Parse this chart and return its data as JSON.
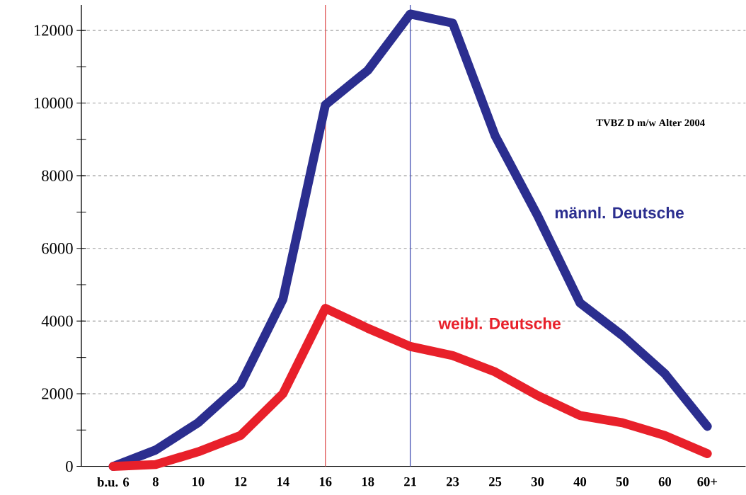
{
  "chart_data": {
    "type": "line",
    "categories": [
      "b.u. 6",
      "8",
      "10",
      "12",
      "14",
      "16",
      "18",
      "21",
      "23",
      "25",
      "30",
      "40",
      "50",
      "60",
      "60+"
    ],
    "ylim": [
      0,
      12700
    ],
    "yticks": [
      0,
      {
        "value": 1000,
        "label": null
      },
      2000,
      {
        "value": 3000,
        "label": null
      },
      4000,
      {
        "value": 5000,
        "label": null
      },
      6000,
      {
        "value": 7000,
        "label": null
      },
      8000,
      {
        "value": 9000,
        "label": null
      },
      10000,
      {
        "value": 11000,
        "label": null
      },
      12000
    ],
    "grid": "y",
    "marker": "none",
    "line_style": "solid",
    "series": [
      {
        "name": "männl. Deutsche",
        "color": "#2b2e8f",
        "values": [
          0,
          450,
          1200,
          2250,
          4600,
          9950,
          10900,
          12450,
          12200,
          9100,
          6900,
          4500,
          3600,
          2550,
          1100
        ]
      },
      {
        "name": "weibl. Deutsche",
        "color": "#e8202a",
        "values": [
          0,
          50,
          400,
          850,
          2000,
          4350,
          3800,
          3300,
          3050,
          2600,
          1950,
          1400,
          1200,
          850,
          350
        ]
      }
    ],
    "ref_lines": [
      {
        "axis": "x",
        "value": "16",
        "color": "#e05a5a"
      },
      {
        "axis": "x",
        "value": "21",
        "color": "#4a55b5"
      }
    ],
    "annotations": [
      "TVBZ D m/w Alter 2004"
    ]
  }
}
